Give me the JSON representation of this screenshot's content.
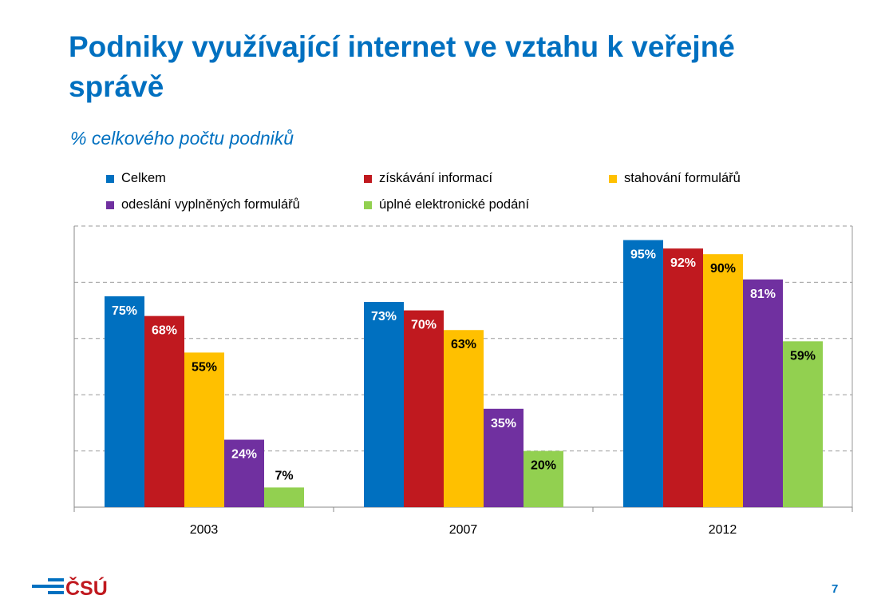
{
  "title": "Podniky využívající internet ve vztahu k veřejné správě",
  "subtitle": "% celkového počtu podniků",
  "page_number": "7",
  "logo_text": "ČSÚ",
  "chart_data": {
    "type": "bar",
    "categories": [
      "2003",
      "2007",
      "2012"
    ],
    "ylim": [
      0,
      100
    ],
    "grid": true,
    "legend_position": "top",
    "series": [
      {
        "name": "Celkem",
        "color": "#0070c0",
        "values": [
          75,
          73,
          95
        ],
        "labels": [
          "75%",
          "73%",
          "95%"
        ]
      },
      {
        "name": "získávání informací",
        "color": "#c0191f",
        "values": [
          68,
          70,
          92
        ],
        "labels": [
          "68%",
          "70%",
          "92%"
        ]
      },
      {
        "name": "stahování formulářů",
        "color": "#ffc000",
        "values": [
          55,
          63,
          90
        ],
        "labels": [
          "55%",
          "63%",
          "90%"
        ]
      },
      {
        "name": "odeslání vyplněných formulářů",
        "color": "#7030a0",
        "values": [
          24,
          35,
          81
        ],
        "labels": [
          "24%",
          "35%",
          "81%"
        ]
      },
      {
        "name": "úplné elektronické podání",
        "color": "#92d050",
        "values": [
          7,
          20,
          59
        ],
        "labels": [
          "7%",
          "20%",
          "59%"
        ]
      }
    ]
  }
}
